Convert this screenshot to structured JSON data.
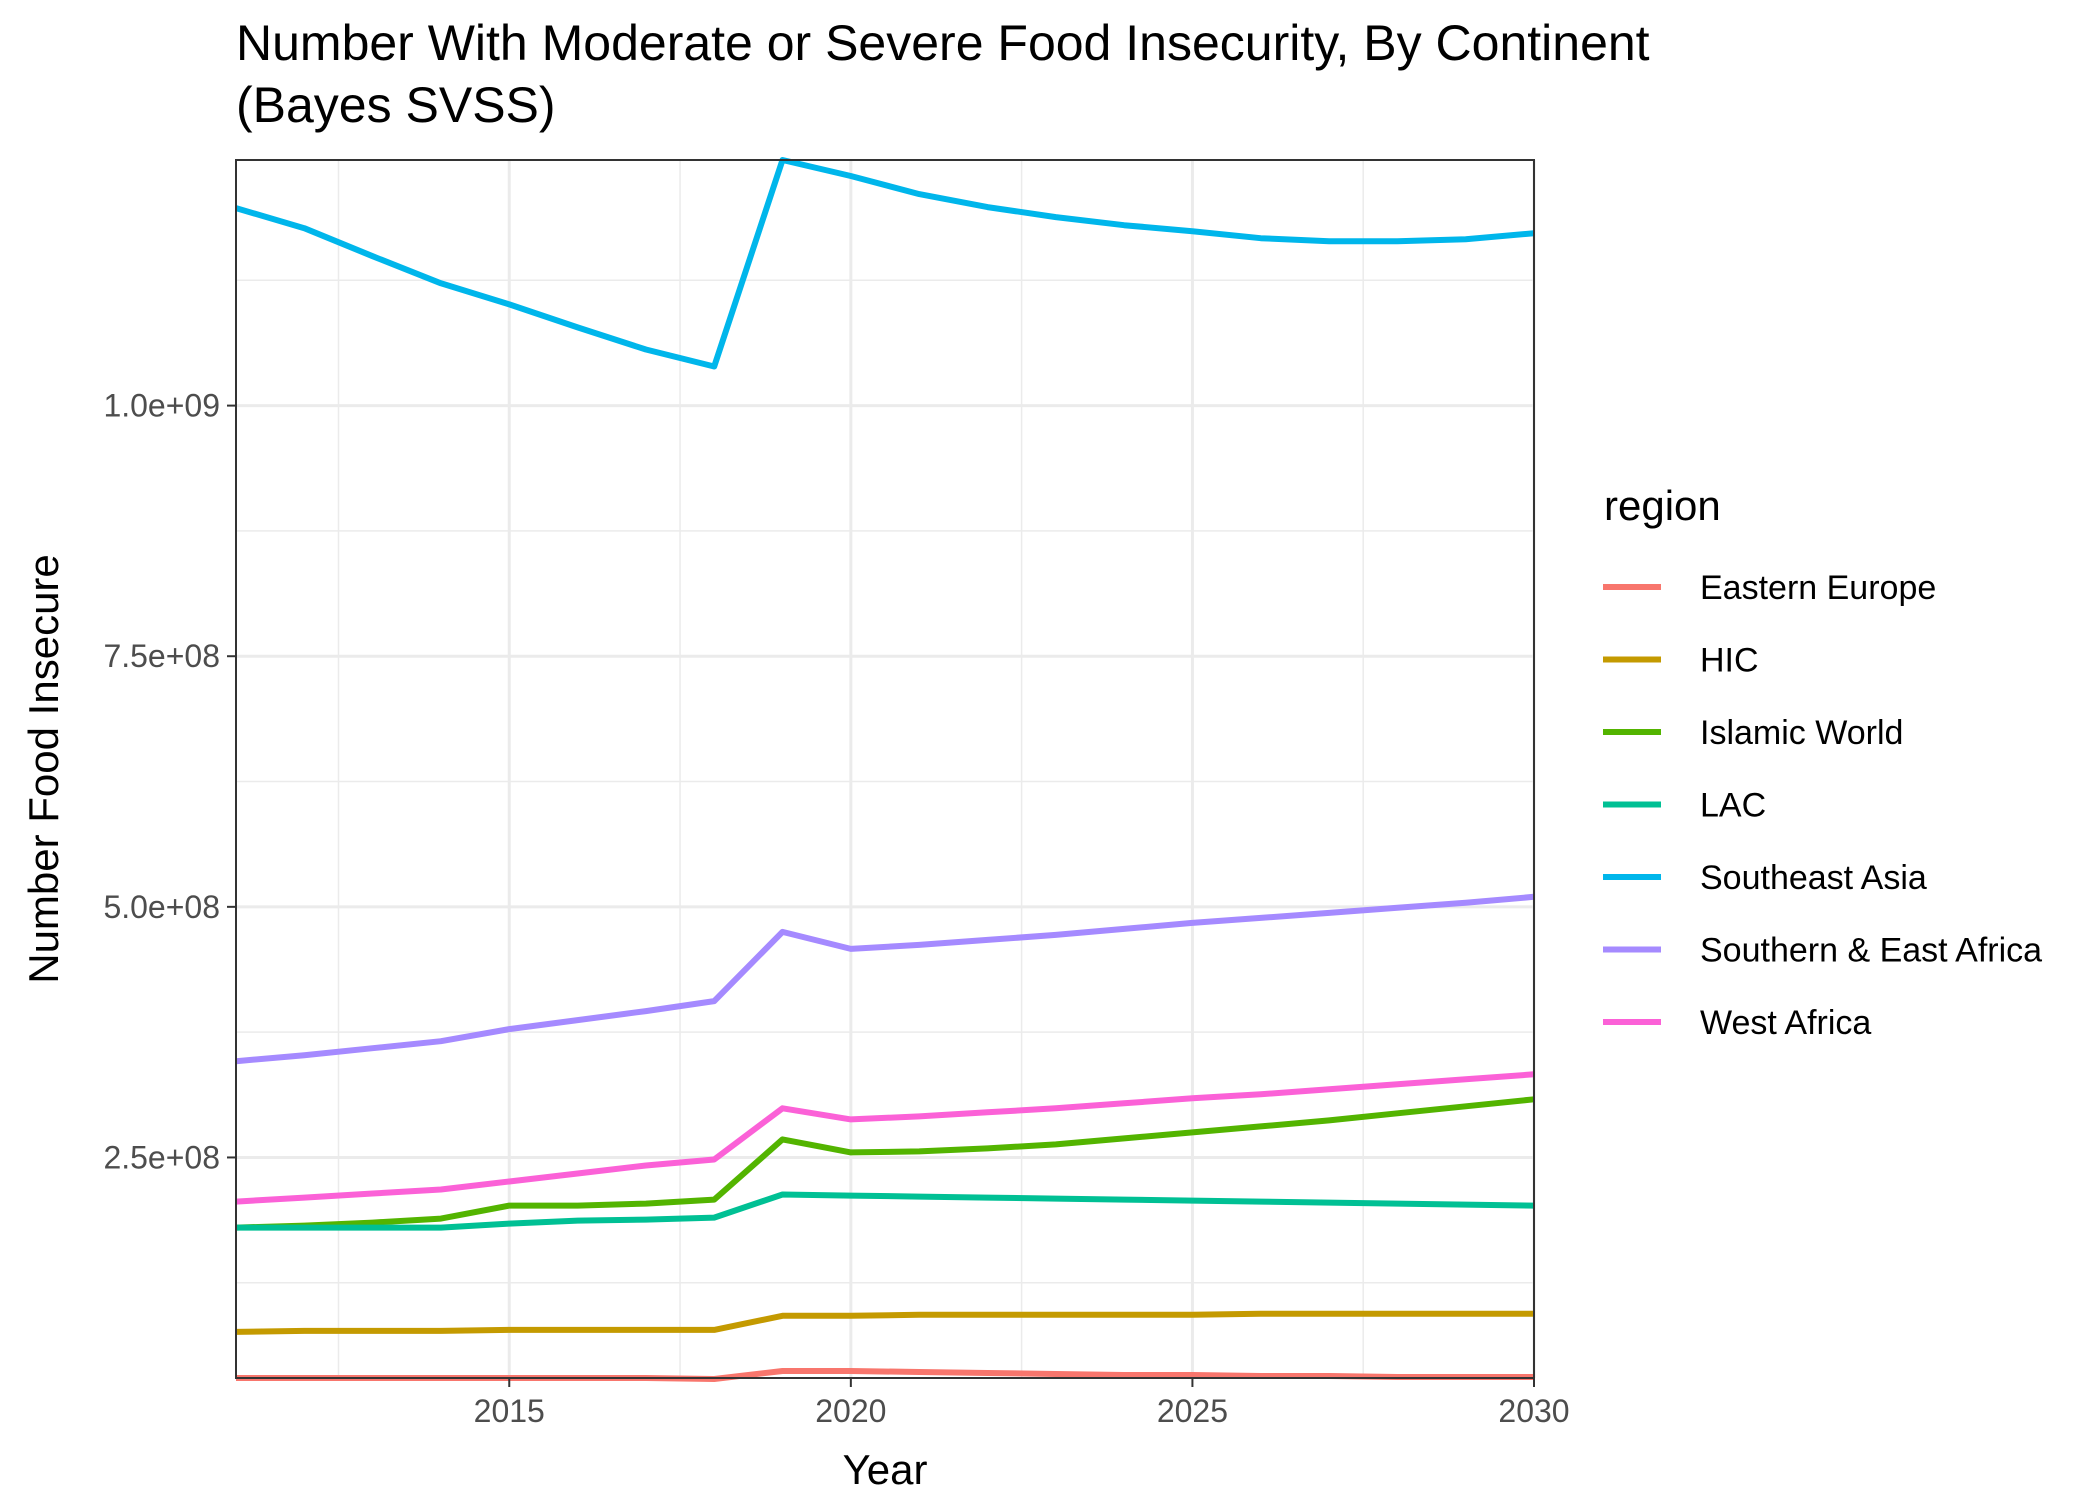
{
  "chart_data": {
    "type": "line",
    "title_lines": [
      "Number With Moderate or Severe Food Insecurity, By Continent",
      "(Bayes SVSS)"
    ],
    "xlabel": "Year",
    "ylabel": "Number Food Insecure",
    "xlim": [
      2011,
      2030
    ],
    "ylim": [
      30000000,
      1245000000
    ],
    "x_ticks": [
      2015,
      2020,
      2025,
      2030
    ],
    "x_tick_labels": [
      "2015",
      "2020",
      "2025",
      "2030"
    ],
    "y_ticks": [
      250000000,
      500000000,
      750000000,
      1000000000
    ],
    "y_tick_labels": [
      "2.5e+08",
      "5.0e+08",
      "7.5e+08",
      "1.0e+09"
    ],
    "y_minor_ticks": [
      125000000,
      375000000,
      625000000,
      875000000,
      1125000000
    ],
    "x_minor_ticks": [
      2012.5,
      2017.5,
      2022.5,
      2027.5
    ],
    "grid": true,
    "legend": {
      "title": "region",
      "position": "right"
    },
    "x": [
      2011,
      2012,
      2013,
      2014,
      2015,
      2016,
      2017,
      2018,
      2019,
      2020,
      2021,
      2022,
      2023,
      2024,
      2025,
      2026,
      2027,
      2028,
      2029,
      2030
    ],
    "series": [
      {
        "name": "Eastern Europe",
        "color": "#F8766D",
        "values": [
          30000000,
          30000000,
          30000000,
          30000000,
          30000000,
          30000000,
          30000000,
          29000000,
          37000000,
          37000000,
          36000000,
          35000000,
          34000000,
          33000000,
          33000000,
          32000000,
          32000000,
          31000000,
          31000000,
          31000000
        ]
      },
      {
        "name": "HIC",
        "color": "#C49A00",
        "values": [
          76000000,
          77000000,
          77000000,
          77000000,
          78000000,
          78000000,
          78000000,
          78000000,
          92000000,
          92000000,
          93000000,
          93000000,
          93000000,
          93000000,
          93000000,
          94000000,
          94000000,
          94000000,
          94000000,
          94000000
        ]
      },
      {
        "name": "Islamic World",
        "color": "#53B400",
        "values": [
          180000000,
          182000000,
          185000000,
          189000000,
          202000000,
          202000000,
          204000000,
          208000000,
          268000000,
          255000000,
          256000000,
          259000000,
          263000000,
          269000000,
          275000000,
          281000000,
          287000000,
          294000000,
          301000000,
          308000000
        ]
      },
      {
        "name": "LAC",
        "color": "#00C094",
        "values": [
          180000000,
          180000000,
          180000000,
          180000000,
          184000000,
          187000000,
          188000000,
          190000000,
          213000000,
          212000000,
          211000000,
          210000000,
          209000000,
          208000000,
          207000000,
          206000000,
          205000000,
          204000000,
          203000000,
          202000000
        ]
      },
      {
        "name": "Southeast Asia",
        "color": "#00B6EB",
        "values": [
          1197000000,
          1177000000,
          1149000000,
          1122000000,
          1101000000,
          1078000000,
          1056000000,
          1039000000,
          1245000000,
          1229000000,
          1211000000,
          1198000000,
          1188000000,
          1180000000,
          1174000000,
          1167000000,
          1164000000,
          1164000000,
          1166000000,
          1172000000
        ]
      },
      {
        "name": "Southern & East Africa",
        "color": "#A58AFF",
        "values": [
          346000000,
          352000000,
          359000000,
          366000000,
          378000000,
          387000000,
          396000000,
          406000000,
          475000000,
          458000000,
          462000000,
          467000000,
          472000000,
          478000000,
          484000000,
          489000000,
          494000000,
          499000000,
          504000000,
          510000000
        ]
      },
      {
        "name": "West Africa",
        "color": "#FB61D7",
        "values": [
          206000000,
          210000000,
          214000000,
          218000000,
          226000000,
          234000000,
          242000000,
          248000000,
          299000000,
          288000000,
          291000000,
          295000000,
          299000000,
          304000000,
          309000000,
          313000000,
          318000000,
          323000000,
          328000000,
          333000000
        ]
      }
    ]
  }
}
